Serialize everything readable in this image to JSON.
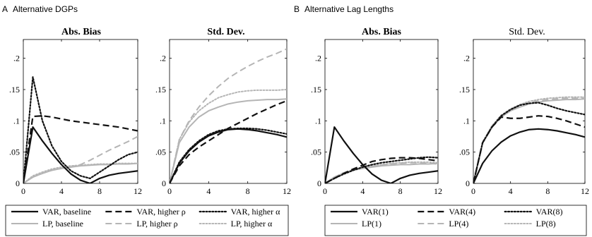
{
  "panels": [
    {
      "letter": "A",
      "heading": "Alternative DGPs",
      "legend": {
        "rows": [
          [
            "VAR, baseline",
            "VAR, higher ρ",
            "VAR, higher α"
          ],
          [
            "LP, baseline",
            "LP, higher ρ",
            "LP, higher α"
          ]
        ]
      }
    },
    {
      "letter": "B",
      "heading": "Alternative Lag Lengths",
      "legend": {
        "rows": [
          [
            "VAR(1)",
            "VAR(4)",
            "VAR(8)"
          ],
          [
            "LP(1)",
            "LP(4)",
            "LP(8)"
          ]
        ]
      }
    }
  ],
  "styles": {
    "VAR": {
      "color": "#111111",
      "width": 2.2
    },
    "LP": {
      "color": "#b5b5b5",
      "width": 2.0
    },
    "dash": {
      "solid": "",
      "dashed": "9,5",
      "dotted": "2,2.4"
    }
  },
  "chart_data": [
    {
      "type": "line",
      "title": "Abs. Bias",
      "x_ticks": [
        0,
        4,
        8,
        12
      ],
      "y_ticks": [
        0,
        0.05,
        0.1,
        0.15,
        0.2
      ],
      "xlim": [
        0,
        12
      ],
      "ylim": [
        0,
        0.23
      ],
      "x": [
        0,
        1,
        2,
        3,
        4,
        5,
        6,
        7,
        8,
        9,
        10,
        11,
        12
      ],
      "series": [
        {
          "name": "VAR, baseline",
          "family": "VAR",
          "dash": "solid",
          "values": [
            0,
            0.09,
            0.068,
            0.048,
            0.03,
            0.015,
            0.005,
            0,
            0.008,
            0.013,
            0.016,
            0.018,
            0.02
          ]
        },
        {
          "name": "VAR, higher ρ",
          "family": "VAR",
          "dash": "dashed",
          "values": [
            0,
            0.107,
            0.108,
            0.106,
            0.103,
            0.1,
            0.098,
            0.096,
            0.094,
            0.092,
            0.09,
            0.087,
            0.084
          ]
        },
        {
          "name": "VAR, higher α",
          "family": "VAR",
          "dash": "dotted",
          "values": [
            0,
            0.17,
            0.1,
            0.06,
            0.035,
            0.02,
            0.012,
            0.008,
            0.018,
            0.028,
            0.038,
            0.046,
            0.05
          ]
        },
        {
          "name": "LP, baseline",
          "family": "LP",
          "dash": "solid",
          "values": [
            0,
            0.01,
            0.016,
            0.021,
            0.024,
            0.026,
            0.028,
            0.029,
            0.03,
            0.03,
            0.031,
            0.031,
            0.032
          ]
        },
        {
          "name": "LP, higher ρ",
          "family": "LP",
          "dash": "dashed",
          "values": [
            0,
            0.01,
            0.016,
            0.021,
            0.024,
            0.026,
            0.03,
            0.037,
            0.045,
            0.053,
            0.06,
            0.067,
            0.075
          ]
        },
        {
          "name": "LP, higher α",
          "family": "LP",
          "dash": "dotted",
          "values": [
            0,
            0.012,
            0.018,
            0.023,
            0.026,
            0.028,
            0.029,
            0.03,
            0.031,
            0.031,
            0.032,
            0.032,
            0.032
          ]
        }
      ]
    },
    {
      "type": "line",
      "title": "Std. Dev.",
      "x_ticks": [
        0,
        4,
        8,
        12
      ],
      "y_ticks": [
        0,
        0.05,
        0.1,
        0.15,
        0.2
      ],
      "xlim": [
        0,
        12
      ],
      "ylim": [
        0,
        0.23
      ],
      "x": [
        0,
        1,
        2,
        3,
        4,
        5,
        6,
        7,
        8,
        9,
        10,
        11,
        12
      ],
      "series": [
        {
          "name": "VAR, baseline",
          "family": "VAR",
          "dash": "solid",
          "values": [
            0,
            0.032,
            0.052,
            0.066,
            0.076,
            0.082,
            0.086,
            0.087,
            0.086,
            0.084,
            0.081,
            0.078,
            0.074
          ]
        },
        {
          "name": "VAR, higher ρ",
          "family": "VAR",
          "dash": "dashed",
          "values": [
            0,
            0.028,
            0.046,
            0.058,
            0.068,
            0.078,
            0.088,
            0.096,
            0.104,
            0.112,
            0.119,
            0.126,
            0.132
          ]
        },
        {
          "name": "VAR, higher α",
          "family": "VAR",
          "dash": "dotted",
          "values": [
            0,
            0.034,
            0.054,
            0.068,
            0.078,
            0.084,
            0.087,
            0.088,
            0.088,
            0.087,
            0.085,
            0.082,
            0.079
          ]
        },
        {
          "name": "LP, baseline",
          "family": "LP",
          "dash": "solid",
          "values": [
            0,
            0.065,
            0.09,
            0.106,
            0.116,
            0.122,
            0.127,
            0.13,
            0.132,
            0.133,
            0.134,
            0.134,
            0.135
          ]
        },
        {
          "name": "LP, higher ρ",
          "family": "LP",
          "dash": "dashed",
          "values": [
            0,
            0.07,
            0.1,
            0.122,
            0.14,
            0.155,
            0.168,
            0.178,
            0.187,
            0.195,
            0.202,
            0.208,
            0.215
          ]
        },
        {
          "name": "LP, higher α",
          "family": "LP",
          "dash": "dotted",
          "values": [
            0,
            0.07,
            0.098,
            0.116,
            0.128,
            0.137,
            0.142,
            0.146,
            0.148,
            0.149,
            0.149,
            0.149,
            0.15
          ]
        }
      ]
    },
    {
      "type": "line",
      "title": "Abs. Bias",
      "x_ticks": [
        0,
        4,
        8,
        12
      ],
      "y_ticks": [
        0,
        0.05,
        0.1,
        0.15,
        0.2
      ],
      "xlim": [
        0,
        12
      ],
      "ylim": [
        0,
        0.23
      ],
      "x": [
        0,
        1,
        2,
        3,
        4,
        5,
        6,
        7,
        8,
        9,
        10,
        11,
        12
      ],
      "series": [
        {
          "name": "VAR(1)",
          "family": "VAR",
          "dash": "solid",
          "values": [
            0,
            0.09,
            0.068,
            0.048,
            0.03,
            0.015,
            0.005,
            0,
            0.008,
            0.013,
            0.016,
            0.018,
            0.02
          ]
        },
        {
          "name": "VAR(4)",
          "family": "VAR",
          "dash": "dashed",
          "values": [
            0,
            0.008,
            0.016,
            0.023,
            0.029,
            0.035,
            0.038,
            0.04,
            0.041,
            0.041,
            0.04,
            0.038,
            0.036
          ]
        },
        {
          "name": "VAR(8)",
          "family": "VAR",
          "dash": "dotted",
          "values": [
            0,
            0.008,
            0.015,
            0.021,
            0.026,
            0.03,
            0.033,
            0.035,
            0.037,
            0.039,
            0.041,
            0.042,
            0.041
          ]
        },
        {
          "name": "LP(1)",
          "family": "LP",
          "dash": "solid",
          "values": [
            0,
            0.01,
            0.016,
            0.021,
            0.024,
            0.026,
            0.028,
            0.029,
            0.03,
            0.03,
            0.031,
            0.031,
            0.032
          ]
        },
        {
          "name": "LP(4)",
          "family": "LP",
          "dash": "dashed",
          "values": [
            0,
            0.01,
            0.017,
            0.022,
            0.025,
            0.027,
            0.029,
            0.031,
            0.032,
            0.033,
            0.033,
            0.032,
            0.031
          ]
        },
        {
          "name": "LP(8)",
          "family": "LP",
          "dash": "dotted",
          "values": [
            0,
            0.01,
            0.017,
            0.022,
            0.025,
            0.028,
            0.03,
            0.032,
            0.033,
            0.034,
            0.034,
            0.034,
            0.033
          ]
        }
      ]
    },
    {
      "type": "line",
      "title": "Std. Dev.",
      "x_ticks": [
        0,
        4,
        8,
        12
      ],
      "y_ticks": [
        0,
        0.05,
        0.1,
        0.15,
        0.2
      ],
      "xlim": [
        0,
        12
      ],
      "ylim": [
        0,
        0.23
      ],
      "x": [
        0,
        1,
        2,
        3,
        4,
        5,
        6,
        7,
        8,
        9,
        10,
        11,
        12
      ],
      "series": [
        {
          "name": "VAR(1)",
          "family": "VAR",
          "dash": "solid",
          "values": [
            0,
            0.032,
            0.052,
            0.066,
            0.076,
            0.082,
            0.086,
            0.087,
            0.086,
            0.084,
            0.081,
            0.078,
            0.074
          ]
        },
        {
          "name": "VAR(4)",
          "family": "VAR",
          "dash": "dashed",
          "values": [
            0,
            0.065,
            0.09,
            0.106,
            0.104,
            0.104,
            0.106,
            0.108,
            0.107,
            0.104,
            0.1,
            0.095,
            0.09
          ]
        },
        {
          "name": "VAR(8)",
          "family": "VAR",
          "dash": "dotted",
          "values": [
            0,
            0.065,
            0.09,
            0.108,
            0.118,
            0.125,
            0.128,
            0.129,
            0.125,
            0.12,
            0.116,
            0.113,
            0.11
          ]
        },
        {
          "name": "LP(1)",
          "family": "LP",
          "dash": "solid",
          "values": [
            0,
            0.065,
            0.09,
            0.106,
            0.116,
            0.122,
            0.127,
            0.13,
            0.132,
            0.133,
            0.134,
            0.134,
            0.135
          ]
        },
        {
          "name": "LP(4)",
          "family": "LP",
          "dash": "dashed",
          "values": [
            0,
            0.065,
            0.091,
            0.107,
            0.117,
            0.124,
            0.129,
            0.132,
            0.134,
            0.135,
            0.136,
            0.136,
            0.136
          ]
        },
        {
          "name": "LP(8)",
          "family": "LP",
          "dash": "dotted",
          "values": [
            0,
            0.066,
            0.092,
            0.109,
            0.119,
            0.126,
            0.131,
            0.134,
            0.136,
            0.137,
            0.138,
            0.138,
            0.138
          ]
        }
      ]
    }
  ]
}
